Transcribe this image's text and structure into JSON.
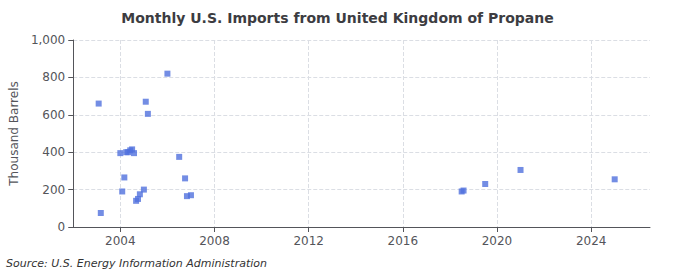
{
  "chart_data": {
    "type": "scatter",
    "title": "Monthly U.S. Imports from United Kingdom of Propane",
    "ylabel": "Thousand Barrels",
    "source": "Source: U.S. Energy Information Administration",
    "marker": "square",
    "grid": true,
    "xlim": [
      2002.0,
      2026.5
    ],
    "ylim": [
      0,
      1000
    ],
    "xticks": [
      2004,
      2008,
      2012,
      2016,
      2020,
      2024
    ],
    "yticks": [
      0,
      200,
      400,
      600,
      800,
      {
        "value": 1000,
        "label": "1,000"
      }
    ],
    "x": [
      2003.08,
      2003.17,
      2004.0,
      2004.08,
      2004.17,
      2004.25,
      2004.33,
      2004.42,
      2004.5,
      2004.58,
      2004.67,
      2004.75,
      2004.83,
      2005.0,
      2005.08,
      2005.17,
      2006.0,
      2006.5,
      2006.75,
      2006.83,
      2007.0,
      2018.5,
      2018.58,
      2019.5,
      2021.0,
      2025.0
    ],
    "values": [
      660,
      75,
      395,
      190,
      265,
      400,
      400,
      410,
      415,
      395,
      140,
      150,
      175,
      200,
      670,
      605,
      820,
      375,
      260,
      165,
      170,
      190,
      195,
      230,
      305,
      255
    ]
  }
}
